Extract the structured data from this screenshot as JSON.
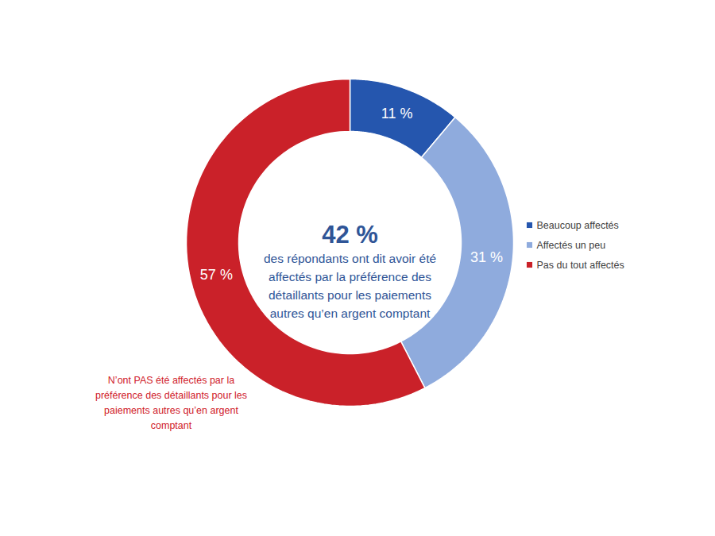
{
  "chart_data": {
    "type": "donut",
    "categories": [
      "Beaucoup affectés",
      "Affectés un peu",
      "Pas du tout affectés"
    ],
    "values": [
      11,
      31,
      57
    ],
    "value_labels": [
      "11 %",
      "31 %",
      "57 %"
    ],
    "colors": [
      "#2556AE",
      "#8FABDD",
      "#CA2129"
    ],
    "data_labels": true,
    "legend": "right",
    "annotations": [
      {
        "text": [
          "42 %"
        ]
      },
      {
        "text": [
          "des répondants ont dit avoir été",
          "affectés par la préférence des",
          "détaillants pour les paiements",
          "autres qu’en argent comptant"
        ]
      },
      {
        "text": [
          "N’ont PAS été affectés par la",
          "préférence des détaillants pour les",
          "paiements autres qu’en argent",
          "comptant"
        ]
      }
    ]
  }
}
